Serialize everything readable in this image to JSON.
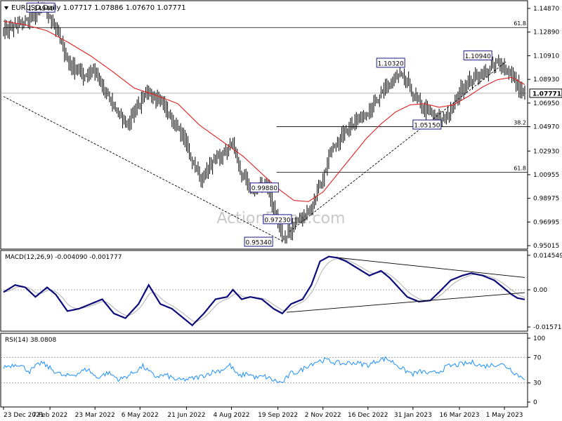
{
  "symbol": "EURUSD",
  "timeframe": "Daily",
  "ohlc_header": "1.07717 1.07886 1.07670 1.07771",
  "watermark": "ActionForex.com",
  "current_price": "1.07771",
  "colors": {
    "candle": "#000000",
    "ma": "#e02020",
    "macd": "#0a0a7a",
    "signal": "#b0b0b0",
    "rsi": "#1e90ff",
    "fib": "#000000",
    "trend": "#000000"
  },
  "chart_data": [
    {
      "type": "line",
      "name": "price",
      "title": "EURUSD,Daily",
      "y_ticks": [
        "1.14870",
        "1.12890",
        "1.10910",
        "1.08930",
        "1.06950",
        "1.04970",
        "1.02930",
        "1.00955",
        "0.98975",
        "0.96995",
        "0.95015"
      ],
      "ylim": [
        0.9502,
        1.1487
      ],
      "x_ticks": [
        "23 Dec 2021",
        "7 Feb 2022",
        "23 Mar 2022",
        "6 May 2022",
        "21 Jun 2022",
        "4 Aug 2022",
        "19 Sep 2022",
        "2 Nov 2022",
        "16 Dec 2022",
        "31 Jan 2023",
        "16 Mar 2023",
        "1 May 2023"
      ],
      "x_tick_index": [
        0,
        32,
        63,
        94,
        126,
        157,
        189,
        220,
        251,
        282,
        314,
        345
      ],
      "anchors": [
        [
          0,
          1.13
        ],
        [
          10,
          1.134
        ],
        [
          20,
          1.142
        ],
        [
          27,
          1.149
        ],
        [
          35,
          1.135
        ],
        [
          45,
          1.103
        ],
        [
          55,
          1.092
        ],
        [
          62,
          1.098
        ],
        [
          68,
          1.082
        ],
        [
          78,
          1.063
        ],
        [
          85,
          1.052
        ],
        [
          92,
          1.066
        ],
        [
          100,
          1.078
        ],
        [
          106,
          1.074
        ],
        [
          112,
          1.064
        ],
        [
          118,
          1.052
        ],
        [
          124,
          1.041
        ],
        [
          130,
          1.022
        ],
        [
          136,
          1.005
        ],
        [
          142,
          1.016
        ],
        [
          148,
          1.023
        ],
        [
          155,
          1.032
        ],
        [
          158,
          1.035
        ],
        [
          163,
          1.012
        ],
        [
          170,
          0.996
        ],
        [
          176,
          0.999
        ],
        [
          181,
          1.003
        ],
        [
          186,
          0.98
        ],
        [
          190,
          0.966
        ],
        [
          193,
          0.956
        ],
        [
          197,
          0.962
        ],
        [
          202,
          0.97
        ],
        [
          208,
          0.975
        ],
        [
          214,
          0.99
        ],
        [
          220,
          1.008
        ],
        [
          226,
          1.03
        ],
        [
          232,
          1.04
        ],
        [
          240,
          1.053
        ],
        [
          250,
          1.062
        ],
        [
          258,
          1.071
        ],
        [
          263,
          1.083
        ],
        [
          269,
          1.088
        ],
        [
          273,
          1.093
        ],
        [
          278,
          1.087
        ],
        [
          284,
          1.071
        ],
        [
          290,
          1.065
        ],
        [
          296,
          1.058
        ],
        [
          302,
          1.055
        ],
        [
          308,
          1.062
        ],
        [
          314,
          1.079
        ],
        [
          320,
          1.087
        ],
        [
          328,
          1.094
        ],
        [
          334,
          1.097
        ],
        [
          340,
          1.103
        ],
        [
          345,
          1.1
        ],
        [
          350,
          1.093
        ],
        [
          355,
          1.082
        ],
        [
          359,
          1.078
        ]
      ],
      "moving_average": [
        [
          0,
          1.138
        ],
        [
          15,
          1.135
        ],
        [
          30,
          1.13
        ],
        [
          45,
          1.12
        ],
        [
          60,
          1.109
        ],
        [
          75,
          1.096
        ],
        [
          90,
          1.082
        ],
        [
          105,
          1.076
        ],
        [
          120,
          1.069
        ],
        [
          135,
          1.051
        ],
        [
          150,
          1.038
        ],
        [
          165,
          1.025
        ],
        [
          180,
          1.008
        ],
        [
          190,
          0.997
        ],
        [
          200,
          0.988
        ],
        [
          210,
          0.987
        ],
        [
          220,
          0.995
        ],
        [
          230,
          1.01
        ],
        [
          240,
          1.025
        ],
        [
          250,
          1.04
        ],
        [
          260,
          1.052
        ],
        [
          270,
          1.062
        ],
        [
          280,
          1.068
        ],
        [
          290,
          1.069
        ],
        [
          300,
          1.066
        ],
        [
          310,
          1.068
        ],
        [
          320,
          1.075
        ],
        [
          330,
          1.083
        ],
        [
          340,
          1.089
        ],
        [
          350,
          1.091
        ],
        [
          359,
          1.085
        ]
      ],
      "levels": [
        {
          "label": "61.8",
          "value": 1.1327,
          "from": 0
        },
        {
          "label": "38.2",
          "value": 1.0497,
          "from": 188
        },
        {
          "label": "61.8",
          "value": 1.0115,
          "from": 188
        }
      ],
      "trendlines": [
        {
          "from": [
            0,
            1.075
          ],
          "to": [
            193,
            0.9534
          ]
        },
        {
          "from": [
            197,
            0.962
          ],
          "to": [
            346,
            1.104
          ]
        }
      ],
      "annotations": [
        {
          "text": "1.14940",
          "index": 16,
          "value": 1.1494
        },
        {
          "text": "1.10320",
          "index": 257,
          "value": 1.1032
        },
        {
          "text": "1.10940",
          "index": 317,
          "value": 1.1094
        },
        {
          "text": "1.05150",
          "index": 282,
          "value": 1.0515
        },
        {
          "text": "0.95340",
          "index": 166,
          "value": 0.9534
        },
        {
          "text": "0.99880",
          "index": 170,
          "value": 0.9988
        },
        {
          "text": "0.97230",
          "index": 179,
          "value": 0.9723
        }
      ]
    },
    {
      "type": "line",
      "name": "macd",
      "title": "MACD(12,26,9) -0.004090 -0.001777",
      "y_ticks": [
        "0.014549",
        "0.00",
        "-0.015712"
      ],
      "ylim": [
        -0.0157,
        0.0145
      ],
      "anchors": [
        [
          0,
          -0.001
        ],
        [
          8,
          0.002
        ],
        [
          15,
          0.001
        ],
        [
          22,
          -0.003
        ],
        [
          30,
          0.001
        ],
        [
          36,
          -0.002
        ],
        [
          44,
          -0.009
        ],
        [
          52,
          -0.008
        ],
        [
          60,
          -0.006
        ],
        [
          68,
          -0.004
        ],
        [
          76,
          -0.01
        ],
        [
          84,
          -0.012
        ],
        [
          93,
          -0.006
        ],
        [
          100,
          0.002
        ],
        [
          108,
          -0.006
        ],
        [
          116,
          -0.008
        ],
        [
          124,
          -0.012
        ],
        [
          130,
          -0.015
        ],
        [
          138,
          -0.01
        ],
        [
          146,
          -0.004
        ],
        [
          154,
          -0.003
        ],
        [
          158,
          0.0
        ],
        [
          164,
          -0.004
        ],
        [
          170,
          -0.003
        ],
        [
          178,
          -0.004
        ],
        [
          186,
          -0.008
        ],
        [
          192,
          -0.01
        ],
        [
          198,
          -0.006
        ],
        [
          206,
          -0.004
        ],
        [
          212,
          0.002
        ],
        [
          218,
          0.012
        ],
        [
          224,
          0.014
        ],
        [
          230,
          0.0135
        ],
        [
          236,
          0.012
        ],
        [
          244,
          0.009
        ],
        [
          252,
          0.006
        ],
        [
          260,
          0.008
        ],
        [
          266,
          0.005
        ],
        [
          272,
          0.001
        ],
        [
          278,
          -0.003
        ],
        [
          286,
          -0.005
        ],
        [
          294,
          -0.0045
        ],
        [
          300,
          -0.001
        ],
        [
          308,
          0.004
        ],
        [
          316,
          0.006
        ],
        [
          322,
          0.007
        ],
        [
          330,
          0.006
        ],
        [
          338,
          0.004
        ],
        [
          344,
          0.001
        ],
        [
          350,
          -0.002
        ],
        [
          354,
          -0.0035
        ],
        [
          359,
          -0.0041
        ]
      ],
      "trendlines": [
        {
          "from": [
            195,
            -0.0095
          ],
          "to": [
            359,
            -0.0012
          ]
        },
        {
          "from": [
            231,
            0.0135
          ],
          "to": [
            359,
            0.0052
          ]
        }
      ]
    },
    {
      "type": "line",
      "name": "rsi",
      "title": "RSI(14) 38.0808",
      "y_ticks": [
        "100",
        "70",
        "30",
        "0"
      ],
      "ylim": [
        0,
        100
      ],
      "levels": [
        70,
        30
      ],
      "anchors": [
        [
          0,
          55
        ],
        [
          10,
          60
        ],
        [
          18,
          48
        ],
        [
          26,
          62
        ],
        [
          34,
          50
        ],
        [
          42,
          40
        ],
        [
          50,
          44
        ],
        [
          58,
          52
        ],
        [
          64,
          38
        ],
        [
          72,
          46
        ],
        [
          80,
          35
        ],
        [
          88,
          44
        ],
        [
          96,
          56
        ],
        [
          104,
          40
        ],
        [
          112,
          42
        ],
        [
          120,
          34
        ],
        [
          128,
          36
        ],
        [
          136,
          40
        ],
        [
          144,
          47
        ],
        [
          150,
          50
        ],
        [
          156,
          58
        ],
        [
          162,
          40
        ],
        [
          168,
          45
        ],
        [
          174,
          38
        ],
        [
          180,
          40
        ],
        [
          186,
          34
        ],
        [
          192,
          30
        ],
        [
          198,
          45
        ],
        [
          204,
          48
        ],
        [
          210,
          58
        ],
        [
          216,
          64
        ],
        [
          222,
          66
        ],
        [
          228,
          62
        ],
        [
          234,
          60
        ],
        [
          240,
          62
        ],
        [
          246,
          60
        ],
        [
          252,
          58
        ],
        [
          258,
          66
        ],
        [
          264,
          68
        ],
        [
          270,
          60
        ],
        [
          276,
          50
        ],
        [
          282,
          44
        ],
        [
          288,
          48
        ],
        [
          294,
          44
        ],
        [
          300,
          48
        ],
        [
          306,
          56
        ],
        [
          312,
          58
        ],
        [
          318,
          60
        ],
        [
          324,
          62
        ],
        [
          330,
          56
        ],
        [
          336,
          58
        ],
        [
          342,
          60
        ],
        [
          348,
          54
        ],
        [
          352,
          46
        ],
        [
          356,
          40
        ],
        [
          359,
          38
        ]
      ]
    }
  ]
}
